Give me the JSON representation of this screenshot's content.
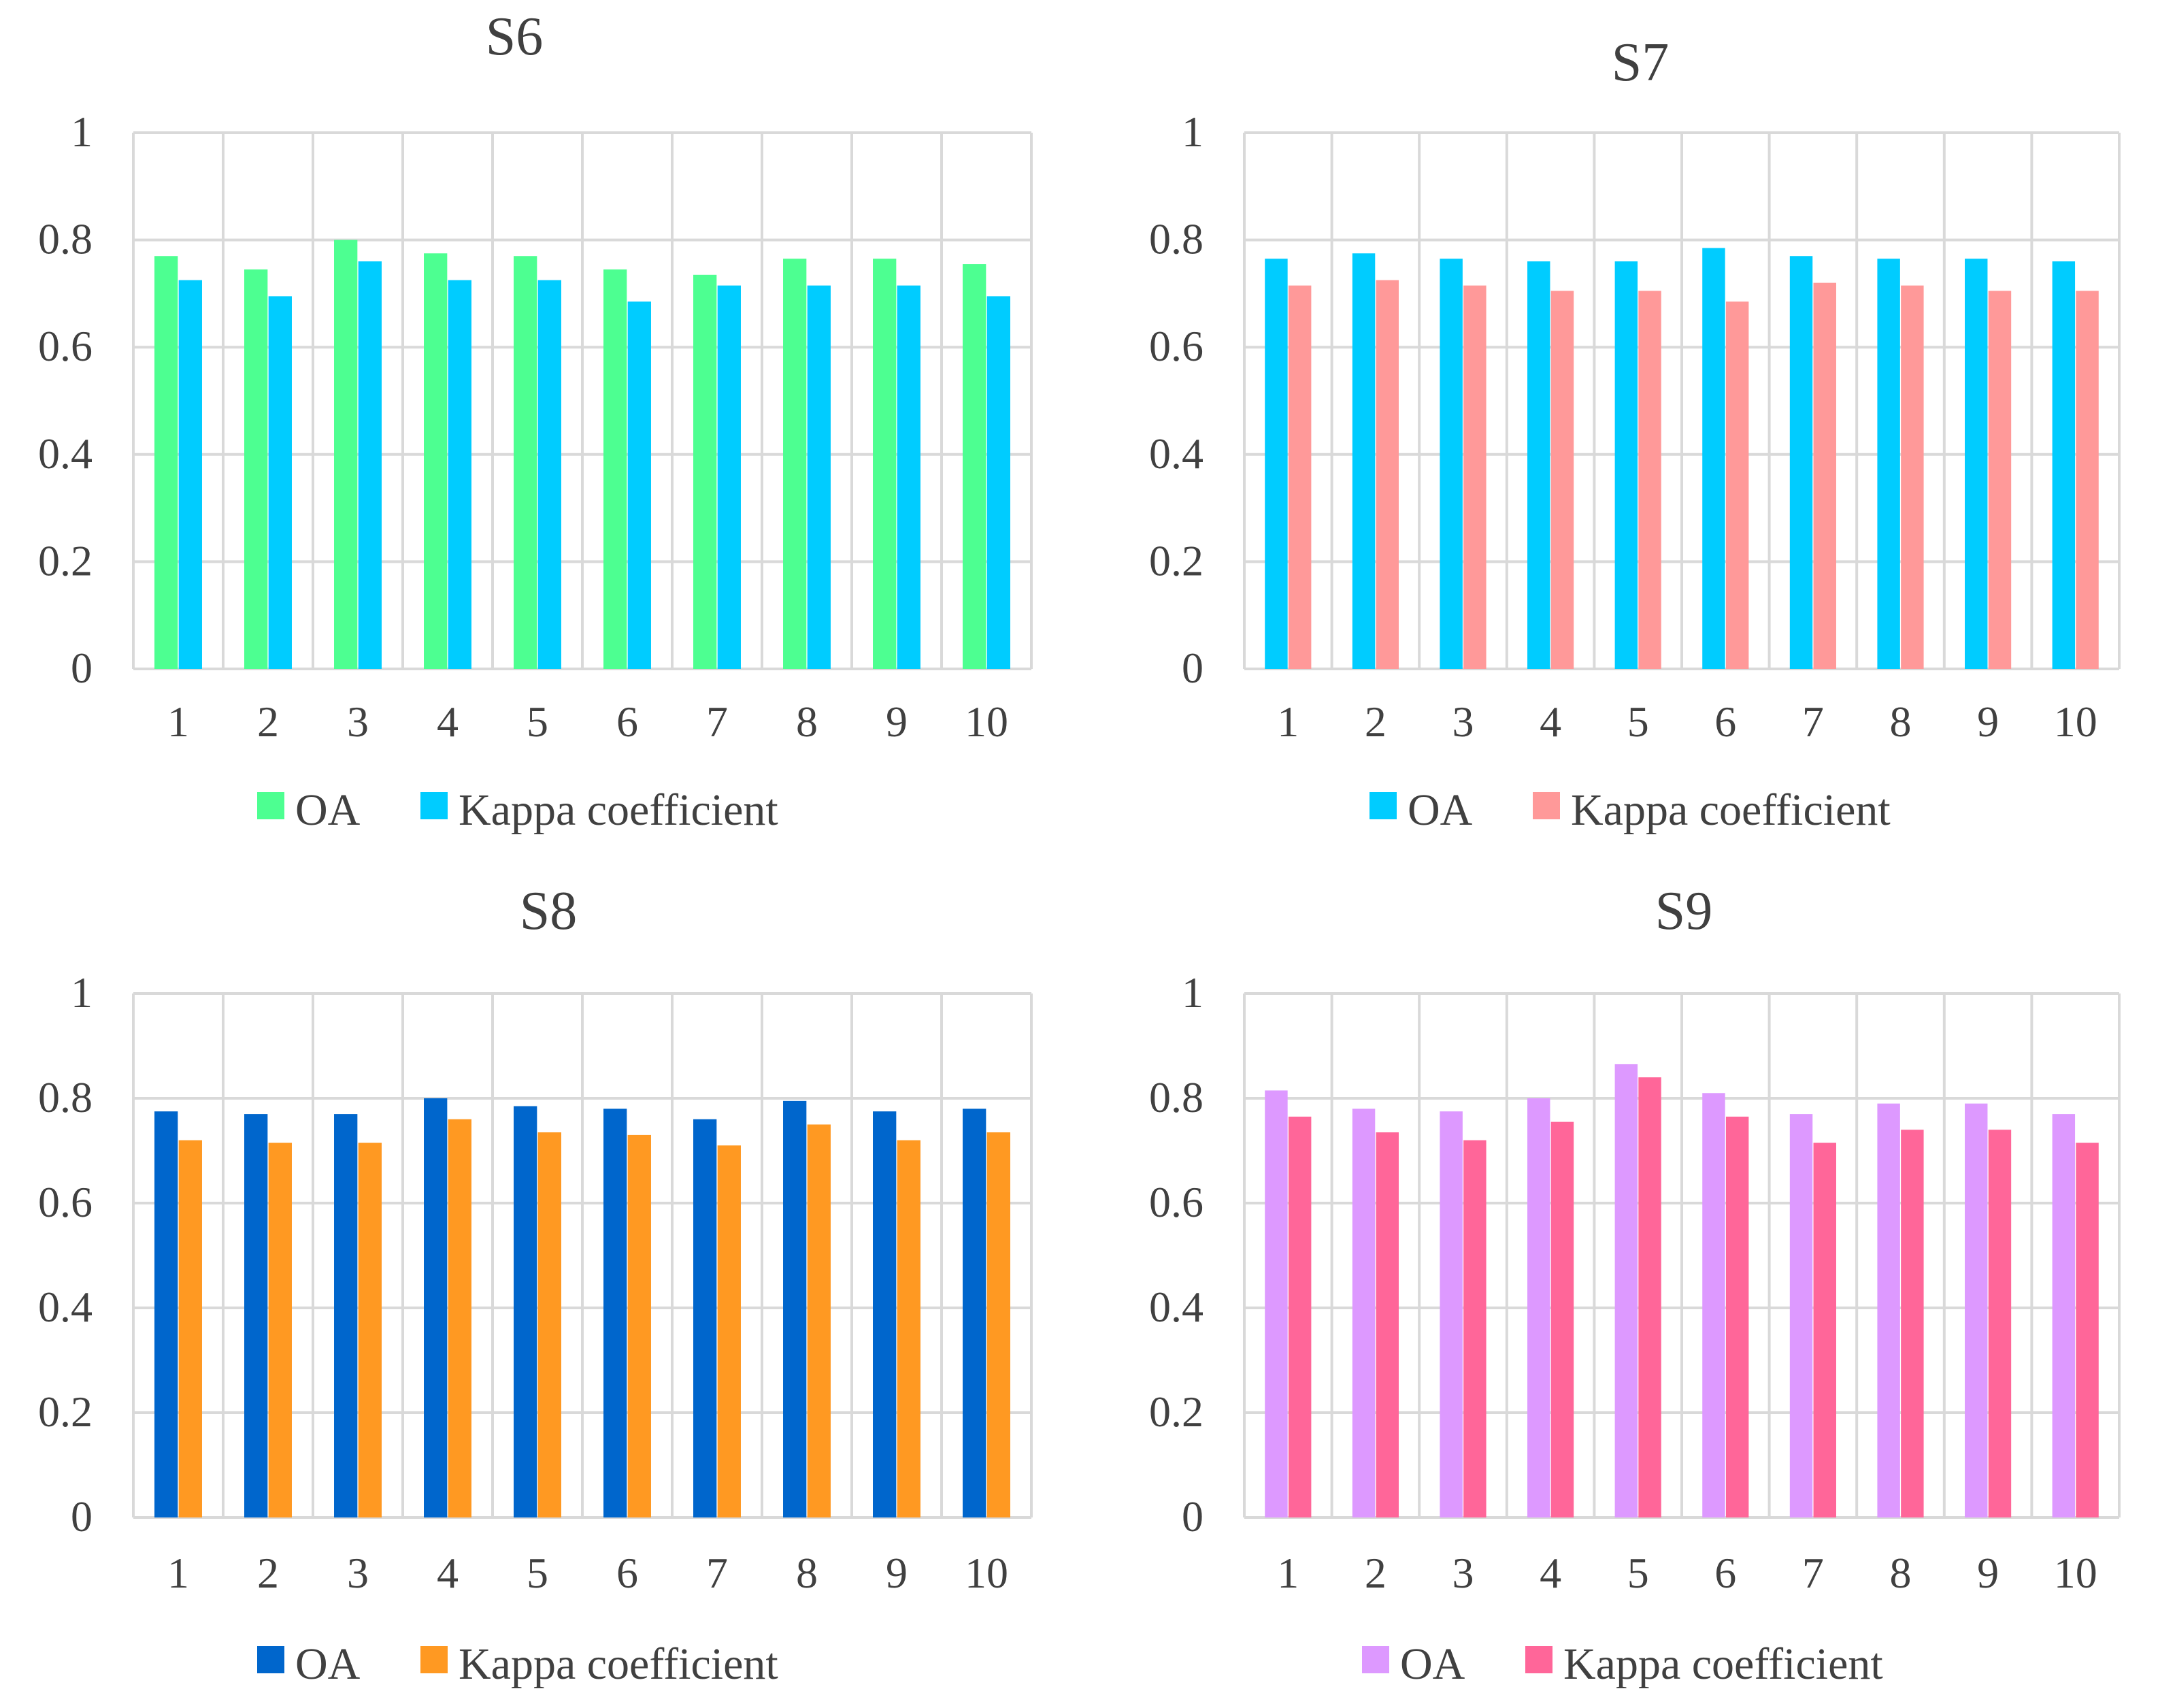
{
  "chart_data": [
    {
      "type": "bar",
      "title": "S6",
      "categories": [
        "1",
        "2",
        "3",
        "4",
        "5",
        "6",
        "7",
        "8",
        "9",
        "10"
      ],
      "yticks": [
        "0",
        "0.2",
        "0.4",
        "0.6",
        "0.8",
        "1"
      ],
      "ylim": [
        0,
        1
      ],
      "series": [
        {
          "name": "OA",
          "color": "#4dff91",
          "values": [
            0.77,
            0.745,
            0.8,
            0.775,
            0.77,
            0.745,
            0.735,
            0.765,
            0.765,
            0.755
          ]
        },
        {
          "name": "Kappa coefficient",
          "color": "#00ccff",
          "values": [
            0.725,
            0.695,
            0.76,
            0.725,
            0.725,
            0.685,
            0.715,
            0.715,
            0.715,
            0.695
          ]
        }
      ]
    },
    {
      "type": "bar",
      "title": "S7",
      "categories": [
        "1",
        "2",
        "3",
        "4",
        "5",
        "6",
        "7",
        "8",
        "9",
        "10"
      ],
      "yticks": [
        "0",
        "0.2",
        "0.4",
        "0.6",
        "0.8",
        "1"
      ],
      "ylim": [
        0,
        1
      ],
      "series": [
        {
          "name": "OA",
          "color": "#00ccff",
          "values": [
            0.765,
            0.775,
            0.765,
            0.76,
            0.76,
            0.785,
            0.77,
            0.765,
            0.765,
            0.76
          ]
        },
        {
          "name": "Kappa coefficient",
          "color": "#ff9999",
          "values": [
            0.715,
            0.725,
            0.715,
            0.705,
            0.705,
            0.685,
            0.72,
            0.715,
            0.705,
            0.705
          ]
        }
      ]
    },
    {
      "type": "bar",
      "title": "S8",
      "categories": [
        "1",
        "2",
        "3",
        "4",
        "5",
        "6",
        "7",
        "8",
        "9",
        "10"
      ],
      "yticks": [
        "0",
        "0.2",
        "0.4",
        "0.6",
        "0.8",
        "1"
      ],
      "ylim": [
        0,
        1
      ],
      "series": [
        {
          "name": "OA",
          "color": "#0066cc",
          "values": [
            0.775,
            0.77,
            0.77,
            0.8,
            0.785,
            0.78,
            0.76,
            0.795,
            0.775,
            0.78
          ]
        },
        {
          "name": "Kappa coefficient",
          "color": "#ff9922",
          "values": [
            0.72,
            0.715,
            0.715,
            0.76,
            0.735,
            0.73,
            0.71,
            0.75,
            0.72,
            0.735
          ]
        }
      ]
    },
    {
      "type": "bar",
      "title": "S9",
      "categories": [
        "1",
        "2",
        "3",
        "4",
        "5",
        "6",
        "7",
        "8",
        "9",
        "10"
      ],
      "yticks": [
        "0",
        "0.2",
        "0.4",
        "0.6",
        "0.8",
        "1"
      ],
      "ylim": [
        0,
        1
      ],
      "series": [
        {
          "name": "OA",
          "color": "#dd99ff",
          "values": [
            0.815,
            0.78,
            0.775,
            0.8,
            0.865,
            0.81,
            0.77,
            0.79,
            0.79,
            0.77
          ]
        },
        {
          "name": "Kappa coefficient",
          "color": "#ff6699",
          "values": [
            0.765,
            0.735,
            0.72,
            0.755,
            0.84,
            0.765,
            0.715,
            0.74,
            0.74,
            0.715
          ]
        }
      ]
    }
  ]
}
